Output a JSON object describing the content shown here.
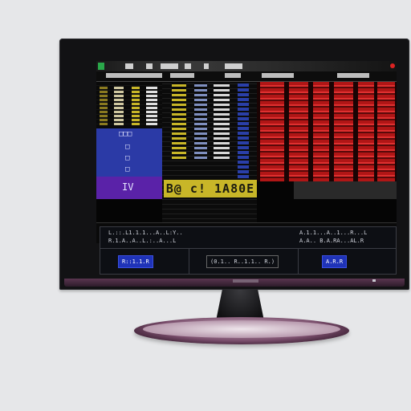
{
  "screen": {
    "banner_text": "B@ c! 1A80E",
    "blue_block_lines": [
      "□□□",
      "□",
      "□",
      "□"
    ],
    "purple_block_label": "IV"
  },
  "lower_panel": {
    "left_top_line1": "L.::.L1.1.1...A..L:Y..",
    "left_top_line2": "R.1.A..A..L.:..A...L",
    "right_top_line1": "A.1.1...A..1...R...L",
    "right_top_line2": "A.A.. B.A.RA...AL.R",
    "left_button": "R::1.1.R",
    "mid_button": "(0.1.. R..1.1.. R.)",
    "right_button": "A.R.R"
  },
  "colors": {
    "screen_red": "#b01616",
    "screen_blue": "#2b3aa6",
    "screen_purple": "#5a22a8",
    "screen_yellow": "#c8b628",
    "stand_plum": "#7a4e6c"
  },
  "icons": {
    "app": "green-square-icon",
    "close": "red-dot-icon"
  }
}
